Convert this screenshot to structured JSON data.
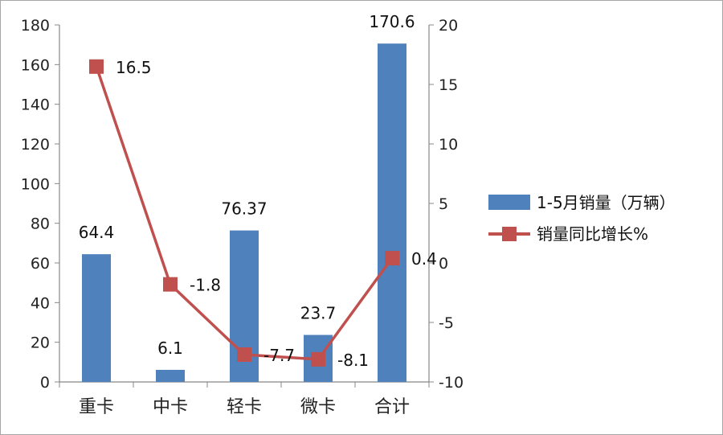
{
  "chart_data": {
    "type": "bar+line",
    "categories": [
      "重卡",
      "中卡",
      "轻卡",
      "微卡",
      "合计"
    ],
    "series": [
      {
        "name": "1-5月销量（万辆）",
        "type": "bar",
        "axis": "left",
        "color": "#4F81BD",
        "values": [
          64.4,
          6.1,
          76.37,
          23.7,
          170.6
        ],
        "labels": [
          "64.4",
          "6.1",
          "76.37",
          "23.7",
          "170.6"
        ]
      },
      {
        "name": "销量同比增长%",
        "type": "line",
        "axis": "right",
        "color": "#C0504D",
        "values": [
          16.5,
          -1.8,
          -7.7,
          -8.1,
          0.4
        ],
        "labels": [
          "16.5",
          "-1.8",
          "-7.7",
          "-8.1",
          "0.4"
        ]
      }
    ],
    "y_left": {
      "ylim": [
        0,
        180
      ],
      "ticks": [
        0,
        20,
        40,
        60,
        80,
        100,
        120,
        140,
        160,
        180
      ]
    },
    "y_right": {
      "ylim": [
        -10,
        20
      ],
      "ticks": [
        -10,
        -5,
        0,
        5,
        10,
        15,
        20
      ]
    },
    "grid": false,
    "legend": "right"
  }
}
